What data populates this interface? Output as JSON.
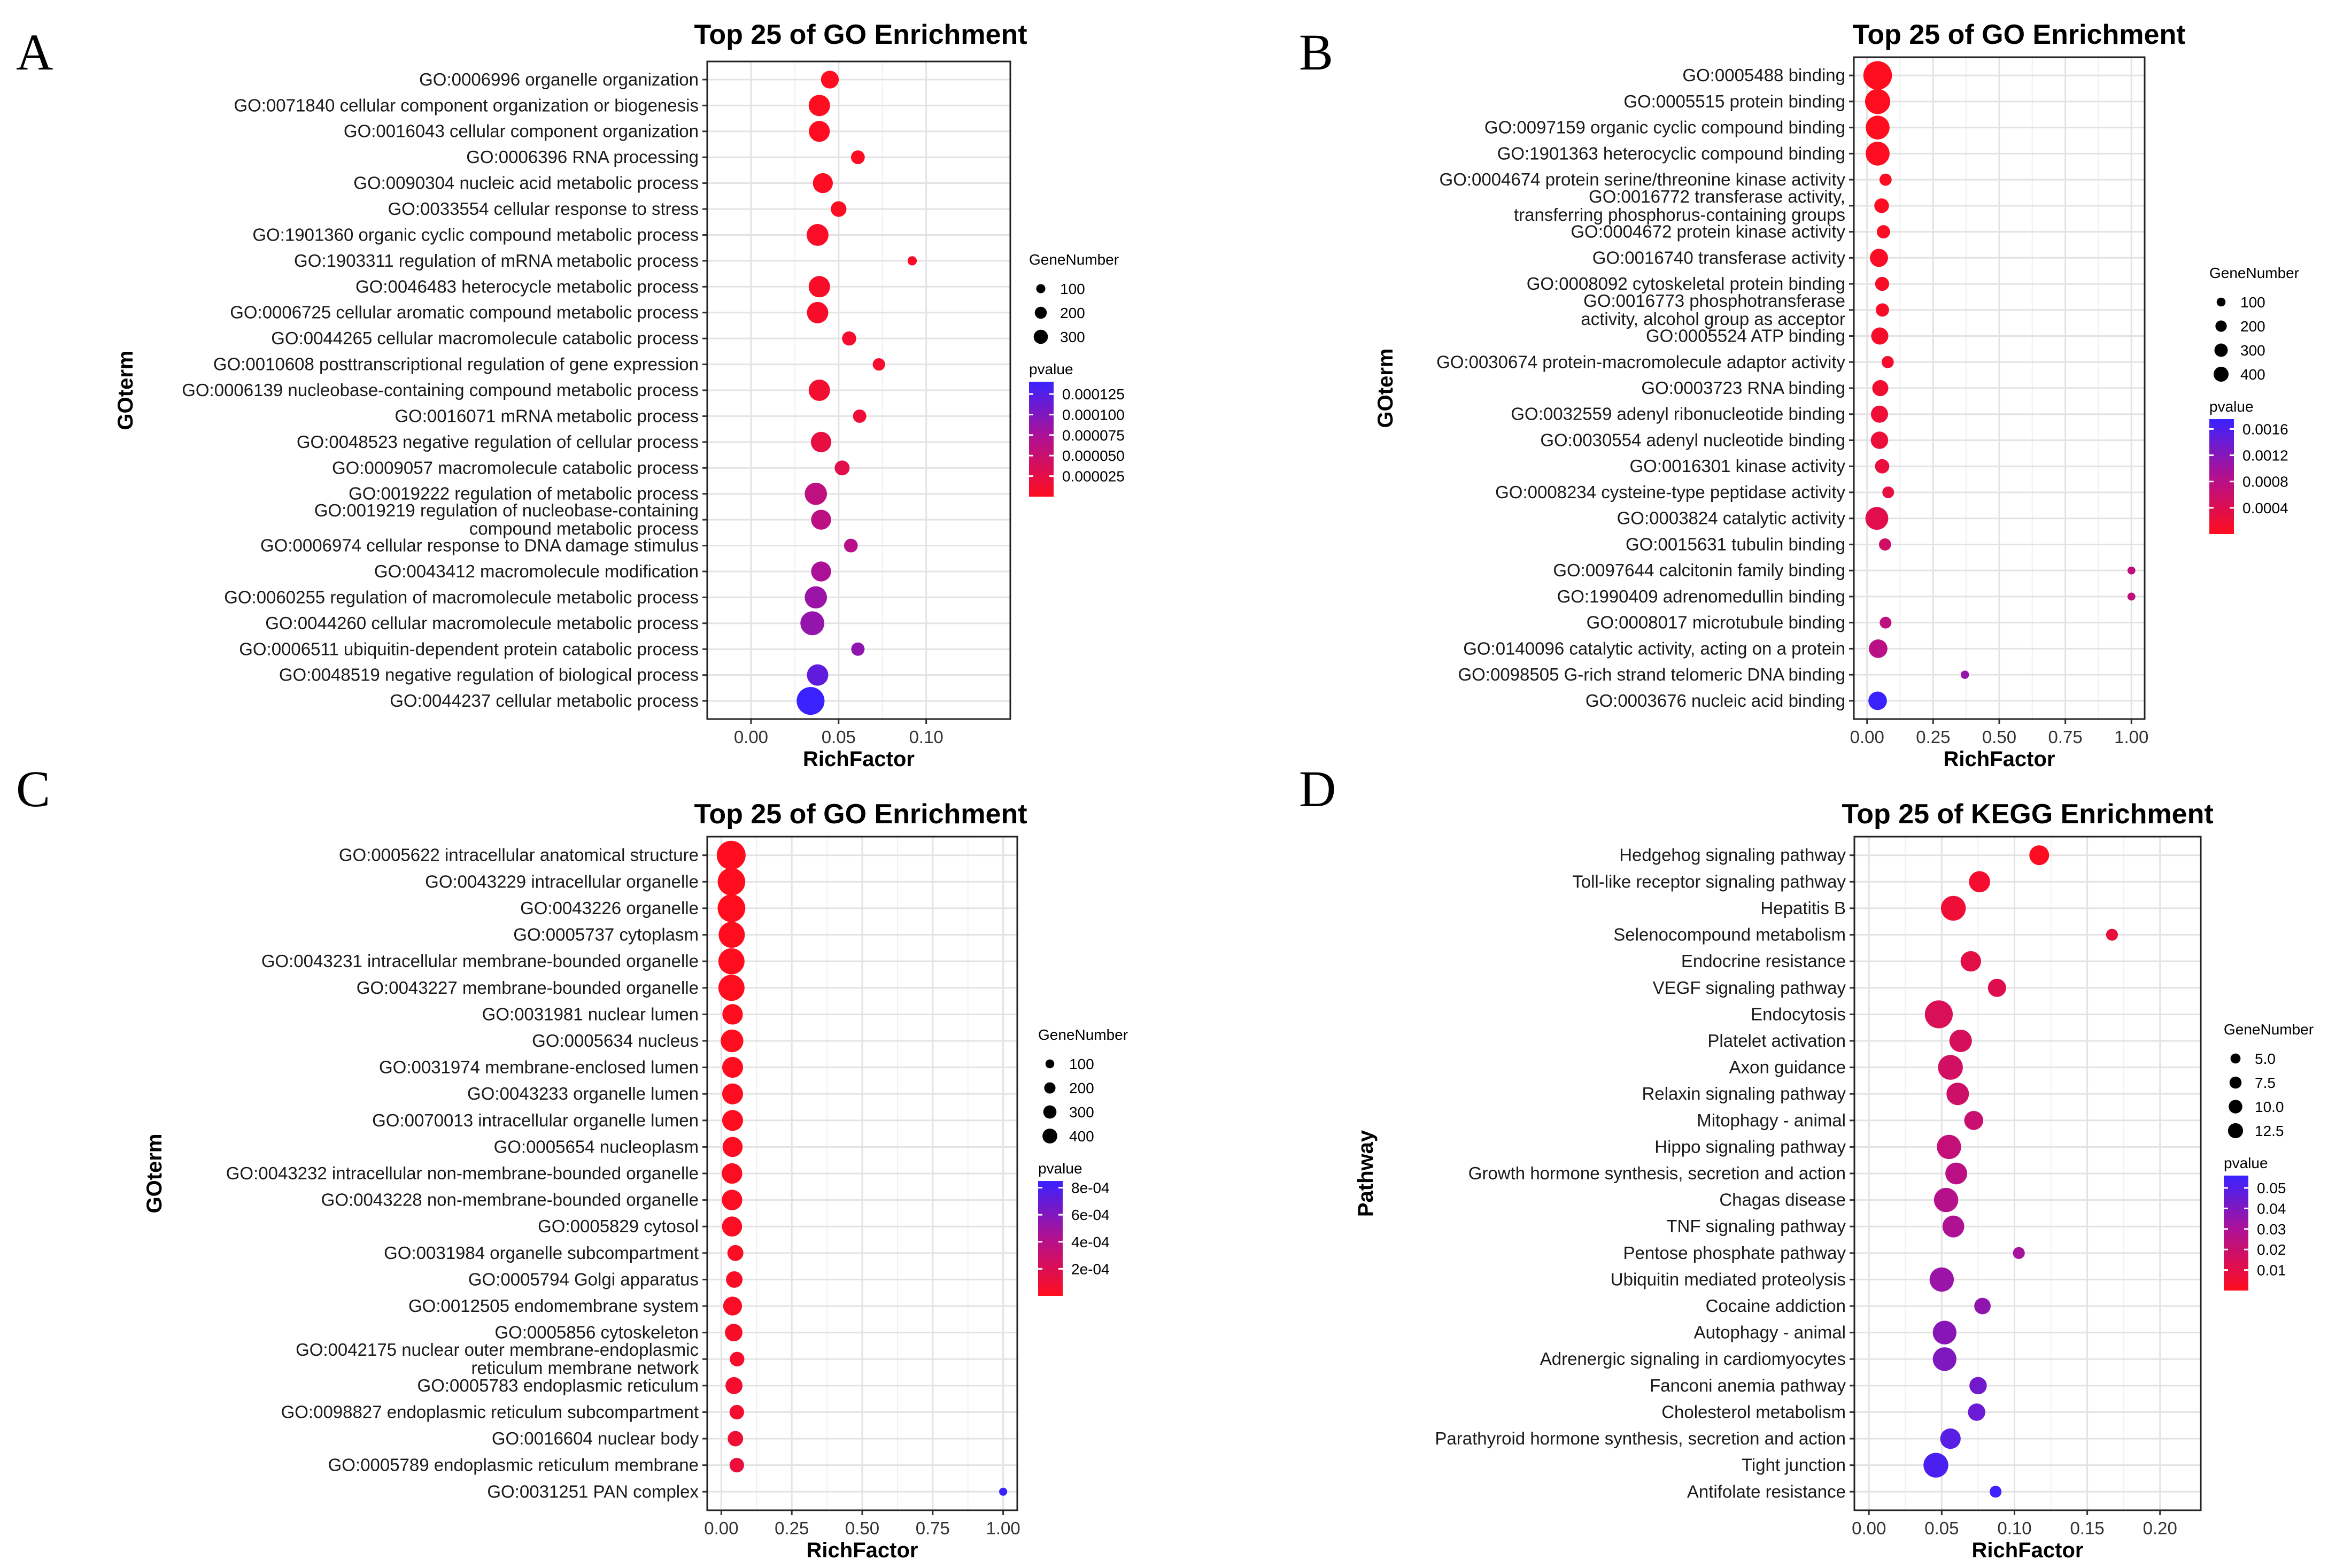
{
  "chart_data": [
    {
      "letter": "A",
      "type": "scatter",
      "title": "Top 25 of GO Enrichment",
      "xlabel": "RichFactor",
      "ylabel": "GOterm",
      "xlim": [
        -0.025,
        0.148
      ],
      "xticks": [
        0.0,
        0.05,
        0.1
      ],
      "xtick_labels": [
        "0.00",
        "0.05",
        "0.10"
      ],
      "size_legend_title": "GeneNumber",
      "size_legend": [
        100,
        200,
        300
      ],
      "size_range": [
        10,
        390
      ],
      "color_legend_title": "pvalue",
      "color_legend_ticks": [
        "0.000125",
        "0.000100",
        "0.000075",
        "0.000050",
        "0.000025"
      ],
      "color_legend_values": [
        0.000125,
        0.0001,
        7.5e-05,
        5e-05,
        2.5e-05
      ],
      "color_range": [
        0,
        0.00014
      ],
      "points": [
        {
          "term": "GO:0006996 organelle organization",
          "x": 0.045,
          "genes": 120,
          "p": 1e-06
        },
        {
          "term": "GO:0071840 cellular component organization or biogenesis",
          "x": 0.039,
          "genes": 190,
          "p": 1e-06
        },
        {
          "term": "GO:0016043 cellular component organization",
          "x": 0.039,
          "genes": 180,
          "p": 1e-06
        },
        {
          "term": "GO:0006396 RNA processing",
          "x": 0.061,
          "genes": 60,
          "p": 3e-06
        },
        {
          "term": "GO:0090304 nucleic acid metabolic process",
          "x": 0.041,
          "genes": 160,
          "p": 3e-06
        },
        {
          "term": "GO:0033554 cellular response to stress",
          "x": 0.05,
          "genes": 85,
          "p": 4e-06
        },
        {
          "term": "GO:1901360 organic cyclic compound metabolic process",
          "x": 0.038,
          "genes": 200,
          "p": 5e-06
        },
        {
          "term": "GO:1903311 regulation of mRNA metabolic process",
          "x": 0.092,
          "genes": 18,
          "p": 6e-06
        },
        {
          "term": "GO:0046483 heterocycle metabolic process",
          "x": 0.039,
          "genes": 190,
          "p": 6e-06
        },
        {
          "term": "GO:0006725 cellular aromatic compound metabolic process",
          "x": 0.038,
          "genes": 190,
          "p": 7e-06
        },
        {
          "term": "GO:0044265 cellular macromolecule catabolic process",
          "x": 0.056,
          "genes": 65,
          "p": 9e-06
        },
        {
          "term": "GO:0010608 posttranscriptional regulation of gene expression",
          "x": 0.073,
          "genes": 45,
          "p": 1e-05
        },
        {
          "term": "GO:0006139 nucleobase-containing compound metabolic process",
          "x": 0.039,
          "genes": 190,
          "p": 1.2e-05
        },
        {
          "term": "GO:0016071 mRNA metabolic process",
          "x": 0.062,
          "genes": 55,
          "p": 1.6e-05
        },
        {
          "term": "GO:0048523 negative regulation of cellular process",
          "x": 0.04,
          "genes": 170,
          "p": 2.2e-05
        },
        {
          "term": "GO:0009057 macromolecule catabolic process",
          "x": 0.052,
          "genes": 75,
          "p": 2.8e-05
        },
        {
          "term": "GO:0019222 regulation of metabolic process",
          "x": 0.037,
          "genes": 210,
          "p": 6e-05
        },
        {
          "term": "GO:0019219 regulation of nucleobase-containing compound metabolic process",
          "x": 0.04,
          "genes": 160,
          "p": 6.2e-05
        },
        {
          "term": "GO:0006974 cellular response to DNA damage stimulus",
          "x": 0.057,
          "genes": 60,
          "p": 6.6e-05
        },
        {
          "term": "GO:0043412 macromolecule modification",
          "x": 0.04,
          "genes": 160,
          "p": 7.5e-05
        },
        {
          "term": "GO:0060255 regulation of macromolecule metabolic process",
          "x": 0.037,
          "genes": 210,
          "p": 8.5e-05
        },
        {
          "term": "GO:0044260 cellular macromolecule metabolic process",
          "x": 0.035,
          "genes": 250,
          "p": 8.8e-05
        },
        {
          "term": "GO:0006511 ubiquitin-dependent protein catabolic process",
          "x": 0.061,
          "genes": 55,
          "p": 9e-05
        },
        {
          "term": "GO:0048519 negative regulation of biological process",
          "x": 0.038,
          "genes": 190,
          "p": 0.000118
        },
        {
          "term": "GO:0044237 cellular metabolic process",
          "x": 0.034,
          "genes": 360,
          "p": 0.00014
        }
      ]
    },
    {
      "letter": "B",
      "type": "scatter",
      "title": "Top 25 of GO Enrichment",
      "xlabel": "RichFactor",
      "ylabel": "GOterm",
      "xlim": [
        -0.05,
        1.05
      ],
      "xticks": [
        0.0,
        0.25,
        0.5,
        0.75,
        1.0
      ],
      "xtick_labels": [
        "0.00",
        "0.25",
        "0.50",
        "0.75",
        "1.00"
      ],
      "size_legend_title": "GeneNumber",
      "size_legend": [
        100,
        200,
        300,
        400
      ],
      "size_range": [
        1,
        460
      ],
      "color_legend_title": "pvalue",
      "color_legend_ticks": [
        "0.0016",
        "0.0012",
        "0.0008",
        "0.0004"
      ],
      "color_legend_values": [
        0.0016,
        0.0012,
        0.0008,
        0.0004
      ],
      "color_range": [
        0,
        0.00175
      ],
      "points": [
        {
          "term": "GO:0005488 binding",
          "x": 0.04,
          "genes": 450,
          "p": 1e-05
        },
        {
          "term": "GO:0005515 protein binding",
          "x": 0.04,
          "genes": 330,
          "p": 1e-05
        },
        {
          "term": "GO:0097159 organic cyclic compound binding",
          "x": 0.04,
          "genes": 290,
          "p": 1e-05
        },
        {
          "term": "GO:1901363 heterocyclic compound binding",
          "x": 0.04,
          "genes": 290,
          "p": 2e-05
        },
        {
          "term": "GO:0004674 protein serine/threonine kinase activity",
          "x": 0.07,
          "genes": 40,
          "p": 3e-05
        },
        {
          "term": "GO:0016772 transferase activity, transferring phosphorus-containing groups",
          "x": 0.055,
          "genes": 75,
          "p": 4e-05
        },
        {
          "term": "GO:0004672 protein kinase activity",
          "x": 0.062,
          "genes": 55,
          "p": 5e-05
        },
        {
          "term": "GO:0016740 transferase activity",
          "x": 0.045,
          "genes": 140,
          "p": 6e-05
        },
        {
          "term": "GO:0008092 cytoskeletal protein binding",
          "x": 0.057,
          "genes": 65,
          "p": 8e-05
        },
        {
          "term": "GO:0016773 phosphotransferase activity, alcohol group as acceptor",
          "x": 0.058,
          "genes": 55,
          "p": 9e-05
        },
        {
          "term": "GO:0005524 ATP binding",
          "x": 0.048,
          "genes": 120,
          "p": 0.00011
        },
        {
          "term": "GO:0030674 protein-macromolecule adaptor activity",
          "x": 0.078,
          "genes": 40,
          "p": 0.00014
        },
        {
          "term": "GO:0003723 RNA binding",
          "x": 0.05,
          "genes": 100,
          "p": 0.00016
        },
        {
          "term": "GO:0032559 adenyl ribonucleotide binding",
          "x": 0.047,
          "genes": 120,
          "p": 0.0002
        },
        {
          "term": "GO:0030554 adenyl nucleotide binding",
          "x": 0.047,
          "genes": 125,
          "p": 0.00022
        },
        {
          "term": "GO:0016301 kinase activity",
          "x": 0.057,
          "genes": 70,
          "p": 0.00024
        },
        {
          "term": "GO:0008234 cysteine-type peptidase activity",
          "x": 0.08,
          "genes": 35,
          "p": 0.00028
        },
        {
          "term": "GO:0003824 catalytic activity",
          "x": 0.037,
          "genes": 260,
          "p": 0.00035
        },
        {
          "term": "GO:0015631 tubulin binding",
          "x": 0.068,
          "genes": 40,
          "p": 0.00055
        },
        {
          "term": "GO:0097644 calcitonin family binding",
          "x": 1.0,
          "genes": 2,
          "p": 0.00072
        },
        {
          "term": "GO:1990409 adrenomedullin binding",
          "x": 1.0,
          "genes": 2,
          "p": 0.00072
        },
        {
          "term": "GO:0008017 microtubule binding",
          "x": 0.07,
          "genes": 35,
          "p": 0.00075
        },
        {
          "term": "GO:0140096 catalytic activity, acting on a protein",
          "x": 0.042,
          "genes": 150,
          "p": 0.0008
        },
        {
          "term": "GO:0098505 G-rich strand telomeric DNA binding",
          "x": 0.37,
          "genes": 4,
          "p": 0.0011
        },
        {
          "term": "GO:0003676 nucleic acid binding",
          "x": 0.04,
          "genes": 150,
          "p": 0.00175
        }
      ]
    },
    {
      "letter": "C",
      "type": "scatter",
      "title": "Top 25 of GO Enrichment",
      "xlabel": "RichFactor",
      "ylabel": "GOterm",
      "xlim": [
        -0.05,
        1.05
      ],
      "xticks": [
        0.0,
        0.25,
        0.5,
        0.75,
        1.0
      ],
      "xtick_labels": [
        "0.00",
        "0.25",
        "0.50",
        "0.75",
        "1.00"
      ],
      "size_legend_title": "GeneNumber",
      "size_legend": [
        100,
        200,
        300,
        400
      ],
      "size_range": [
        1,
        470
      ],
      "color_legend_title": "pvalue",
      "color_legend_ticks": [
        "8e-04",
        "6e-04",
        "4e-04",
        "2e-04"
      ],
      "color_legend_values": [
        0.0008,
        0.0006,
        0.0004,
        0.0002
      ],
      "color_range": [
        0,
        0.00085
      ],
      "points": [
        {
          "term": "GO:0005622 intracellular anatomical structure",
          "x": 0.035,
          "genes": 470,
          "p": 1e-06
        },
        {
          "term": "GO:0043229 intracellular organelle",
          "x": 0.036,
          "genes": 420,
          "p": 1e-06
        },
        {
          "term": "GO:0043226 organelle",
          "x": 0.036,
          "genes": 425,
          "p": 1e-06
        },
        {
          "term": "GO:0005737 cytoplasm",
          "x": 0.037,
          "genes": 370,
          "p": 2e-06
        },
        {
          "term": "GO:0043231 intracellular membrane-bounded organelle",
          "x": 0.036,
          "genes": 370,
          "p": 2e-06
        },
        {
          "term": "GO:0043227 membrane-bounded organelle",
          "x": 0.036,
          "genes": 370,
          "p": 3e-06
        },
        {
          "term": "GO:0031981 nuclear lumen",
          "x": 0.04,
          "genes": 200,
          "p": 4e-06
        },
        {
          "term": "GO:0005634 nucleus",
          "x": 0.038,
          "genes": 260,
          "p": 5e-06
        },
        {
          "term": "GO:0031974 membrane-enclosed lumen",
          "x": 0.04,
          "genes": 210,
          "p": 6e-06
        },
        {
          "term": "GO:0043233 organelle lumen",
          "x": 0.04,
          "genes": 210,
          "p": 7e-06
        },
        {
          "term": "GO:0070013 intracellular organelle lumen",
          "x": 0.04,
          "genes": 210,
          "p": 8e-06
        },
        {
          "term": "GO:0005654 nucleoplasm",
          "x": 0.04,
          "genes": 190,
          "p": 1e-05
        },
        {
          "term": "GO:0043232 intracellular non-membrane-bounded organelle",
          "x": 0.038,
          "genes": 200,
          "p": 1.2e-05
        },
        {
          "term": "GO:0043228 non-membrane-bounded organelle",
          "x": 0.038,
          "genes": 200,
          "p": 1.4e-05
        },
        {
          "term": "GO:0005829 cytosol",
          "x": 0.038,
          "genes": 190,
          "p": 1.8e-05
        },
        {
          "term": "GO:0031984 organelle subcompartment",
          "x": 0.05,
          "genes": 100,
          "p": 2.2e-05
        },
        {
          "term": "GO:0005794 Golgi apparatus",
          "x": 0.046,
          "genes": 110,
          "p": 2.8e-05
        },
        {
          "term": "GO:0012505 endomembrane system",
          "x": 0.04,
          "genes": 160,
          "p": 3.5e-05
        },
        {
          "term": "GO:0005856 cytoskeleton",
          "x": 0.044,
          "genes": 130,
          "p": 4e-05
        },
        {
          "term": "GO:0042175 nuclear outer membrane-endoplasmic reticulum membrane network",
          "x": 0.056,
          "genes": 75,
          "p": 5e-05
        },
        {
          "term": "GO:0005783 endoplasmic reticulum",
          "x": 0.045,
          "genes": 120,
          "p": 6e-05
        },
        {
          "term": "GO:0098827 endoplasmic reticulum subcompartment",
          "x": 0.055,
          "genes": 75,
          "p": 7e-05
        },
        {
          "term": "GO:0016604 nuclear body",
          "x": 0.05,
          "genes": 90,
          "p": 9e-05
        },
        {
          "term": "GO:0005789 endoplasmic reticulum membrane",
          "x": 0.055,
          "genes": 75,
          "p": 0.00011
        },
        {
          "term": "GO:0031251 PAN complex",
          "x": 1.0,
          "genes": 3,
          "p": 0.00085
        }
      ]
    },
    {
      "letter": "D",
      "type": "scatter",
      "title": "Top 25 of KEGG Enrichment",
      "xlabel": "RichFactor",
      "ylabel": "Pathway",
      "xlim": [
        -0.01,
        0.228
      ],
      "xticks": [
        0.0,
        0.05,
        0.1,
        0.15,
        0.2
      ],
      "xtick_labels": [
        "0.00",
        "0.05",
        "0.10",
        "0.15",
        "0.20"
      ],
      "size_legend_title": "GeneNumber",
      "size_legend": [
        5.0,
        7.5,
        10.0,
        12.5
      ],
      "size_legend_labels": [
        "5.0",
        "7.5",
        "10.0",
        "12.5"
      ],
      "size_range": [
        1,
        14
      ],
      "color_legend_title": "pvalue",
      "color_legend_ticks": [
        "0.05",
        "0.04",
        "0.03",
        "0.02",
        "0.01"
      ],
      "color_legend_values": [
        0.05,
        0.04,
        0.03,
        0.02,
        0.01
      ],
      "color_range": [
        0,
        0.056
      ],
      "points": [
        {
          "term": "Hedgehog signaling pathway",
          "x": 0.117,
          "genes": 6,
          "p": 0.001
        },
        {
          "term": "Toll-like receptor signaling pathway",
          "x": 0.076,
          "genes": 7,
          "p": 0.004
        },
        {
          "term": "Hepatitis B",
          "x": 0.058,
          "genes": 10,
          "p": 0.006
        },
        {
          "term": "Selenocompound metabolism",
          "x": 0.167,
          "genes": 2,
          "p": 0.008
        },
        {
          "term": "Endocrine resistance",
          "x": 0.07,
          "genes": 6.5,
          "p": 0.01
        },
        {
          "term": "VEGF signaling pathway",
          "x": 0.088,
          "genes": 5,
          "p": 0.012
        },
        {
          "term": "Endocytosis",
          "x": 0.048,
          "genes": 13,
          "p": 0.014
        },
        {
          "term": "Platelet activation",
          "x": 0.063,
          "genes": 8,
          "p": 0.015
        },
        {
          "term": "Axon guidance",
          "x": 0.056,
          "genes": 10,
          "p": 0.017
        },
        {
          "term": "Relaxin signaling pathway",
          "x": 0.061,
          "genes": 8,
          "p": 0.018
        },
        {
          "term": "Mitophagy - animal",
          "x": 0.072,
          "genes": 5.5,
          "p": 0.02
        },
        {
          "term": "Hippo signaling pathway",
          "x": 0.055,
          "genes": 9.5,
          "p": 0.022
        },
        {
          "term": "Growth hormone synthesis, secretion and action",
          "x": 0.06,
          "genes": 7.5,
          "p": 0.025
        },
        {
          "term": "Chagas disease",
          "x": 0.053,
          "genes": 9.5,
          "p": 0.027
        },
        {
          "term": "TNF signaling pathway",
          "x": 0.058,
          "genes": 7.5,
          "p": 0.029
        },
        {
          "term": "Pentose phosphate pathway",
          "x": 0.103,
          "genes": 2,
          "p": 0.031
        },
        {
          "term": "Ubiquitin mediated proteolysis",
          "x": 0.05,
          "genes": 9.5,
          "p": 0.034
        },
        {
          "term": "Cocaine addiction",
          "x": 0.078,
          "genes": 4,
          "p": 0.036
        },
        {
          "term": "Autophagy - animal",
          "x": 0.052,
          "genes": 9,
          "p": 0.038
        },
        {
          "term": "Adrenergic signaling in cardiomyocytes",
          "x": 0.052,
          "genes": 9,
          "p": 0.04
        },
        {
          "term": "Fanconi anemia pathway",
          "x": 0.075,
          "genes": 4.5,
          "p": 0.043
        },
        {
          "term": "Cholesterol metabolism",
          "x": 0.074,
          "genes": 4.5,
          "p": 0.045
        },
        {
          "term": "Parathyroid hormone synthesis, secretion and action",
          "x": 0.056,
          "genes": 6.5,
          "p": 0.049
        },
        {
          "term": "Tight junction",
          "x": 0.046,
          "genes": 10,
          "p": 0.052
        },
        {
          "term": "Antifolate resistance",
          "x": 0.087,
          "genes": 2,
          "p": 0.055
        }
      ]
    }
  ]
}
